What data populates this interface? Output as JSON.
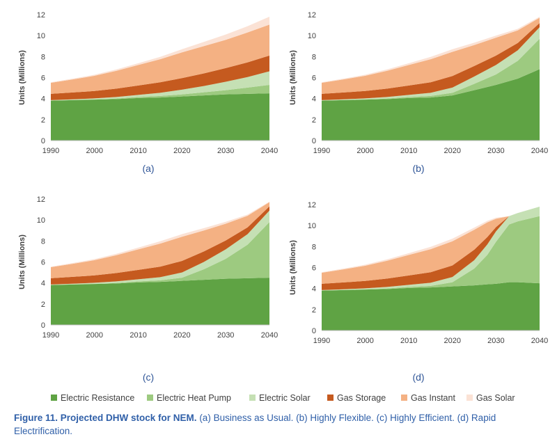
{
  "legend": [
    {
      "name": "Electric Resistance",
      "color": "#5fa344"
    },
    {
      "name": "Electric Heat Pump",
      "color": "#9dca80"
    },
    {
      "name": "Electric Solar",
      "color": "#c5e0b4"
    },
    {
      "name": "Gas Storage",
      "color": "#c55a1f"
    },
    {
      "name": "Gas Instant",
      "color": "#f4b183"
    },
    {
      "name": "Gas Solar",
      "color": "#fbe2d5"
    }
  ],
  "caption": {
    "bold": "Figure 11. Projected DHW stock for NEM.",
    "text": " (a) Business as Usual. (b) Highly Flexible. (c) Highly Efficient. (d) Rapid Electrification."
  },
  "chart_data": [
    {
      "type": "area",
      "sublabel": "(a)",
      "ylabel": "Units (Millions)",
      "ylim": [
        0,
        12
      ],
      "yticks": [
        0,
        2,
        4,
        6,
        8,
        10,
        12
      ],
      "xticks": [
        1990,
        2000,
        2010,
        2020,
        2030,
        2040
      ],
      "stacked": true,
      "x": [
        1990,
        1995,
        2000,
        2005,
        2010,
        2015,
        2020,
        2025,
        2030,
        2035,
        2040
      ],
      "series": [
        {
          "name": "Electric Resistance",
          "values": [
            3.8,
            3.85,
            3.9,
            3.95,
            4.05,
            4.1,
            4.2,
            4.3,
            4.4,
            4.45,
            4.5
          ]
        },
        {
          "name": "Electric Heat Pump",
          "values": [
            0.0,
            0.0,
            0.02,
            0.05,
            0.1,
            0.15,
            0.2,
            0.3,
            0.4,
            0.6,
            0.8
          ]
        },
        {
          "name": "Electric Solar",
          "values": [
            0.05,
            0.08,
            0.1,
            0.15,
            0.2,
            0.3,
            0.45,
            0.6,
            0.8,
            1.0,
            1.3
          ]
        },
        {
          "name": "Gas Storage",
          "values": [
            0.6,
            0.65,
            0.7,
            0.8,
            0.9,
            1.0,
            1.1,
            1.2,
            1.3,
            1.4,
            1.5
          ]
        },
        {
          "name": "Gas Instant",
          "values": [
            1.05,
            1.25,
            1.45,
            1.7,
            1.95,
            2.2,
            2.45,
            2.6,
            2.7,
            2.85,
            2.95
          ]
        },
        {
          "name": "Gas Solar",
          "values": [
            0.05,
            0.07,
            0.1,
            0.13,
            0.17,
            0.22,
            0.3,
            0.4,
            0.5,
            0.6,
            0.75
          ]
        }
      ]
    },
    {
      "type": "area",
      "sublabel": "(b)",
      "ylabel": "Units (Millions)",
      "ylim": [
        0,
        12
      ],
      "yticks": [
        0,
        2,
        4,
        6,
        8,
        10,
        12
      ],
      "xticks": [
        1990,
        2000,
        2010,
        2020,
        2030,
        2040
      ],
      "stacked": true,
      "x": [
        1990,
        1995,
        2000,
        2005,
        2010,
        2015,
        2020,
        2025,
        2030,
        2035,
        2040
      ],
      "series": [
        {
          "name": "Electric Resistance",
          "values": [
            3.8,
            3.85,
            3.9,
            3.95,
            4.05,
            4.1,
            4.3,
            4.8,
            5.3,
            5.9,
            6.8
          ]
        },
        {
          "name": "Electric Heat Pump",
          "values": [
            0.0,
            0.0,
            0.02,
            0.05,
            0.1,
            0.15,
            0.25,
            0.6,
            1.0,
            1.7,
            2.9
          ]
        },
        {
          "name": "Electric Solar",
          "values": [
            0.05,
            0.08,
            0.1,
            0.15,
            0.2,
            0.3,
            0.5,
            0.7,
            0.9,
            1.0,
            1.1
          ]
        },
        {
          "name": "Gas Storage",
          "values": [
            0.6,
            0.65,
            0.7,
            0.8,
            0.9,
            1.0,
            1.1,
            1.0,
            0.9,
            0.7,
            0.4
          ]
        },
        {
          "name": "Gas Instant",
          "values": [
            1.05,
            1.25,
            1.45,
            1.7,
            1.95,
            2.2,
            2.3,
            2.0,
            1.7,
            1.2,
            0.5
          ]
        },
        {
          "name": "Gas Solar",
          "values": [
            0.05,
            0.07,
            0.1,
            0.13,
            0.17,
            0.22,
            0.25,
            0.22,
            0.2,
            0.15,
            0.1
          ]
        }
      ]
    },
    {
      "type": "area",
      "sublabel": "(c)",
      "ylabel": "Units (Millions)",
      "ylim": [
        0,
        12
      ],
      "yticks": [
        0,
        2,
        4,
        6,
        8,
        10,
        12
      ],
      "xticks": [
        1990,
        2000,
        2010,
        2020,
        2030,
        2040
      ],
      "stacked": true,
      "x": [
        1990,
        1995,
        2000,
        2005,
        2010,
        2015,
        2020,
        2025,
        2030,
        2035,
        2040
      ],
      "series": [
        {
          "name": "Electric Resistance",
          "values": [
            3.8,
            3.85,
            3.9,
            3.95,
            4.05,
            4.1,
            4.2,
            4.3,
            4.4,
            4.45,
            4.5
          ]
        },
        {
          "name": "Electric Heat Pump",
          "values": [
            0.0,
            0.0,
            0.02,
            0.05,
            0.1,
            0.15,
            0.3,
            1.0,
            1.9,
            3.2,
            5.3
          ]
        },
        {
          "name": "Electric Solar",
          "values": [
            0.05,
            0.08,
            0.1,
            0.15,
            0.2,
            0.3,
            0.5,
            0.7,
            0.9,
            1.0,
            1.1
          ]
        },
        {
          "name": "Gas Storage",
          "values": [
            0.6,
            0.65,
            0.7,
            0.8,
            0.9,
            1.0,
            1.1,
            1.0,
            0.85,
            0.65,
            0.4
          ]
        },
        {
          "name": "Gas Instant",
          "values": [
            1.05,
            1.25,
            1.45,
            1.7,
            1.95,
            2.2,
            2.3,
            2.0,
            1.6,
            1.1,
            0.4
          ]
        },
        {
          "name": "Gas Solar",
          "values": [
            0.05,
            0.07,
            0.1,
            0.13,
            0.17,
            0.22,
            0.25,
            0.22,
            0.18,
            0.12,
            0.05
          ]
        }
      ]
    },
    {
      "type": "area",
      "sublabel": "(d)",
      "ylabel": "Units (Millions)",
      "ylim": [
        0,
        12
      ],
      "yticks": [
        0,
        2,
        4,
        6,
        8,
        10,
        12
      ],
      "xticks": [
        1990,
        2000,
        2010,
        2020,
        2030,
        2040
      ],
      "stacked": true,
      "x": [
        1990,
        1995,
        2000,
        2005,
        2010,
        2015,
        2020,
        2025,
        2028,
        2030,
        2033,
        2035,
        2040
      ],
      "series": [
        {
          "name": "Electric Resistance",
          "values": [
            3.8,
            3.85,
            3.9,
            3.95,
            4.05,
            4.1,
            4.2,
            4.3,
            4.4,
            4.45,
            4.6,
            4.6,
            4.5
          ]
        },
        {
          "name": "Electric Heat Pump",
          "values": [
            0.0,
            0.0,
            0.02,
            0.05,
            0.1,
            0.15,
            0.4,
            1.6,
            2.8,
            4.0,
            5.5,
            5.8,
            6.4
          ]
        },
        {
          "name": "Electric Solar",
          "values": [
            0.05,
            0.08,
            0.1,
            0.15,
            0.2,
            0.3,
            0.5,
            0.8,
            1.0,
            1.0,
            0.8,
            0.8,
            0.9
          ]
        },
        {
          "name": "Gas Storage",
          "values": [
            0.6,
            0.65,
            0.7,
            0.8,
            0.9,
            1.0,
            1.1,
            1.0,
            0.7,
            0.4,
            0.0,
            0.0,
            0.0
          ]
        },
        {
          "name": "Gas Instant",
          "values": [
            1.05,
            1.25,
            1.45,
            1.7,
            1.95,
            2.2,
            2.3,
            1.9,
            1.4,
            0.8,
            0.0,
            0.0,
            0.0
          ]
        },
        {
          "name": "Gas Solar",
          "values": [
            0.05,
            0.07,
            0.1,
            0.13,
            0.17,
            0.22,
            0.25,
            0.2,
            0.15,
            0.1,
            0.0,
            0.0,
            0.0
          ]
        }
      ]
    }
  ]
}
